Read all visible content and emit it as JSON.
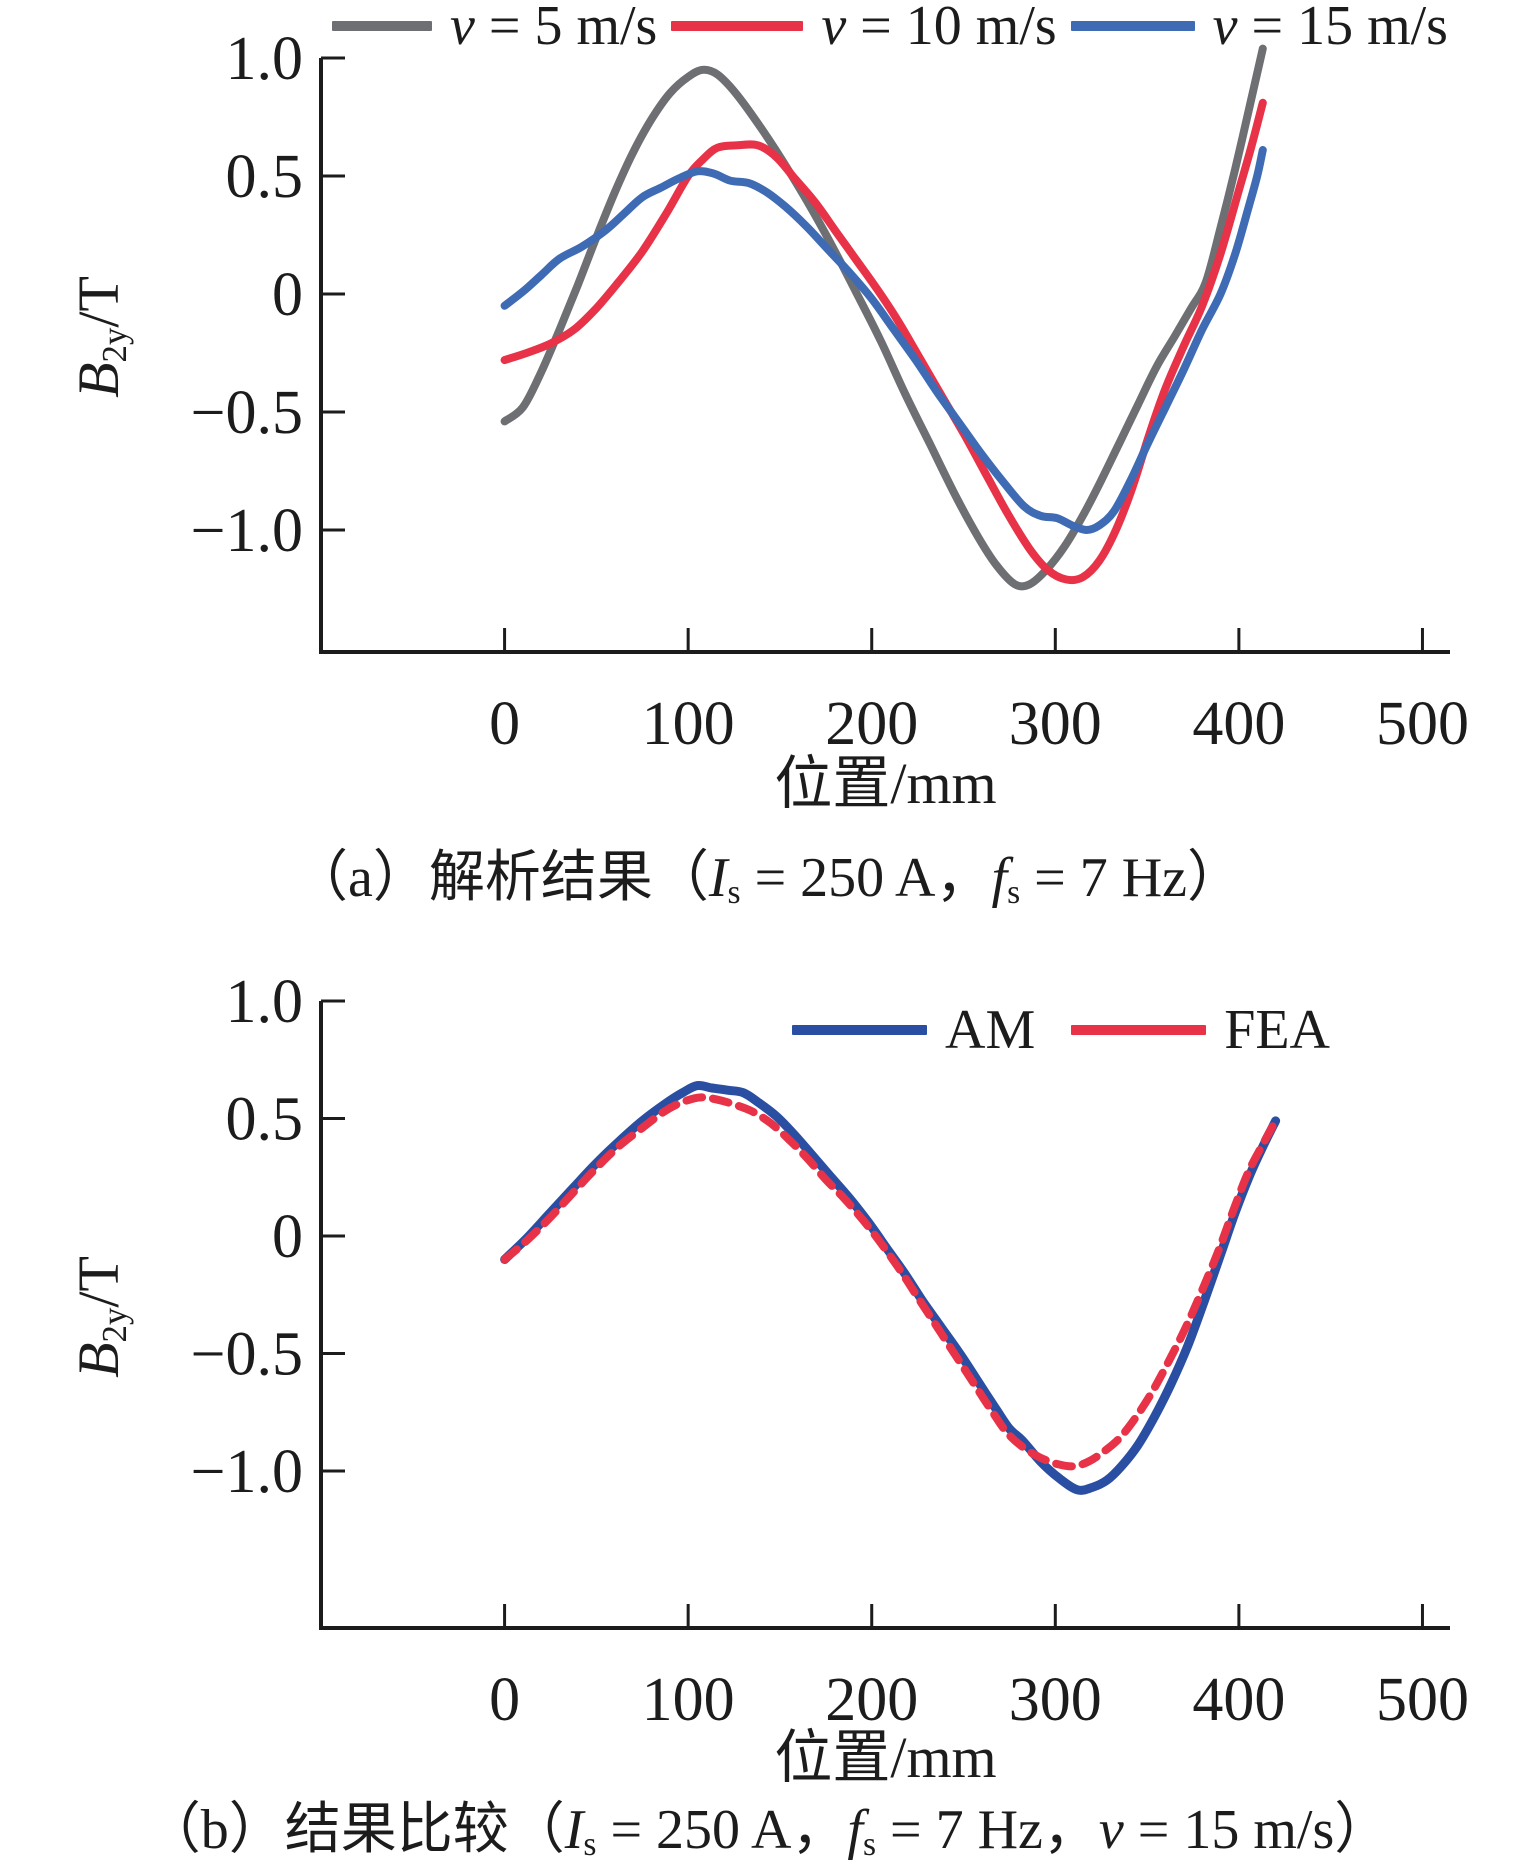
{
  "figure": {
    "background": "#ffffff",
    "text_color": "#1c1c1c",
    "axis_color": "#1c1c1c"
  },
  "chart_data": [
    {
      "type": "line",
      "panel": "a",
      "xlabel": "位置/mm",
      "ylabel_runs": [
        {
          "t": "B",
          "s": "i"
        },
        {
          "t": "2y",
          "s": "sub"
        },
        {
          "t": "/T"
        }
      ],
      "caption_runs": [
        {
          "t": "（a）解析结果（"
        },
        {
          "t": "I",
          "s": "i"
        },
        {
          "t": "s",
          "s": "sub"
        },
        {
          "t": " = 250 A，"
        },
        {
          "t": "f",
          "s": "i"
        },
        {
          "t": "s",
          "s": "sub"
        },
        {
          "t": " = 7 Hz）"
        }
      ],
      "xlim": [
        -100,
        515
      ],
      "ylim": [
        -1.517,
        1.0
      ],
      "grid": false,
      "legend_position": "top",
      "xticks": [
        {
          "v": 0,
          "label": "0"
        },
        {
          "v": 100,
          "label": "100"
        },
        {
          "v": 200,
          "label": "200"
        },
        {
          "v": 300,
          "label": "300"
        },
        {
          "v": 400,
          "label": "400"
        },
        {
          "v": 500,
          "label": "500"
        }
      ],
      "yticks": [
        {
          "v": 1.0,
          "label": "1.0"
        },
        {
          "v": 0.5,
          "label": "0.5"
        },
        {
          "v": 0,
          "label": "0"
        },
        {
          "v": -0.5,
          "label": "−0.5"
        },
        {
          "v": -1.0,
          "label": "−1.0"
        }
      ],
      "legend": [
        {
          "runs": [
            {
              "t": "v",
              "s": "i"
            },
            {
              "t": " = 5 m/s"
            }
          ],
          "color": "#6e6f72",
          "dash": false
        },
        {
          "runs": [
            {
              "t": "v",
              "s": "i"
            },
            {
              "t": " = 10 m/s"
            }
          ],
          "color": "#e73248",
          "dash": false
        },
        {
          "runs": [
            {
              "t": "v",
              "s": "i"
            },
            {
              "t": " = 15 m/s"
            }
          ],
          "color": "#3e6bb4",
          "dash": false
        }
      ],
      "series": [
        {
          "name": "v = 5 m/s",
          "color": "#6e6f72",
          "width": 8,
          "dash": null,
          "points": [
            [
              0,
              -0.54
            ],
            [
              10,
              -0.48
            ],
            [
              20,
              -0.33
            ],
            [
              30,
              -0.15
            ],
            [
              40,
              0.04
            ],
            [
              50,
              0.24
            ],
            [
              60,
              0.43
            ],
            [
              70,
              0.6
            ],
            [
              80,
              0.74
            ],
            [
              90,
              0.85
            ],
            [
              100,
              0.92
            ],
            [
              108,
              0.95
            ],
            [
              116,
              0.93
            ],
            [
              126,
              0.85
            ],
            [
              140,
              0.7
            ],
            [
              155,
              0.52
            ],
            [
              168,
              0.35
            ],
            [
              180,
              0.18
            ],
            [
              192,
              0.0
            ],
            [
              205,
              -0.2
            ],
            [
              218,
              -0.42
            ],
            [
              232,
              -0.64
            ],
            [
              246,
              -0.86
            ],
            [
              258,
              -1.03
            ],
            [
              268,
              -1.15
            ],
            [
              278,
              -1.23
            ],
            [
              286,
              -1.23
            ],
            [
              295,
              -1.17
            ],
            [
              305,
              -1.07
            ],
            [
              315,
              -0.94
            ],
            [
              325,
              -0.79
            ],
            [
              335,
              -0.63
            ],
            [
              345,
              -0.47
            ],
            [
              355,
              -0.31
            ],
            [
              365,
              -0.18
            ],
            [
              374,
              -0.06
            ],
            [
              382,
              0.05
            ],
            [
              390,
              0.28
            ],
            [
              398,
              0.53
            ],
            [
              406,
              0.8
            ],
            [
              413,
              1.04
            ]
          ]
        },
        {
          "name": "v = 10 m/s",
          "color": "#e73248",
          "width": 8,
          "dash": null,
          "points": [
            [
              0,
              -0.28
            ],
            [
              12,
              -0.25
            ],
            [
              25,
              -0.21
            ],
            [
              38,
              -0.15
            ],
            [
              50,
              -0.06
            ],
            [
              62,
              0.05
            ],
            [
              75,
              0.18
            ],
            [
              88,
              0.34
            ],
            [
              100,
              0.5
            ],
            [
              108,
              0.57
            ],
            [
              116,
              0.62
            ],
            [
              127,
              0.63
            ],
            [
              138,
              0.63
            ],
            [
              148,
              0.58
            ],
            [
              158,
              0.49
            ],
            [
              169,
              0.39
            ],
            [
              180,
              0.27
            ],
            [
              192,
              0.14
            ],
            [
              203,
              0.02
            ],
            [
              214,
              -0.11
            ],
            [
              226,
              -0.27
            ],
            [
              238,
              -0.43
            ],
            [
              250,
              -0.59
            ],
            [
              262,
              -0.76
            ],
            [
              274,
              -0.93
            ],
            [
              286,
              -1.08
            ],
            [
              296,
              -1.17
            ],
            [
              306,
              -1.21
            ],
            [
              315,
              -1.2
            ],
            [
              324,
              -1.13
            ],
            [
              333,
              -1.0
            ],
            [
              342,
              -0.82
            ],
            [
              351,
              -0.6
            ],
            [
              360,
              -0.4
            ],
            [
              370,
              -0.22
            ],
            [
              380,
              -0.05
            ],
            [
              390,
              0.17
            ],
            [
              400,
              0.44
            ],
            [
              407,
              0.63
            ],
            [
              413,
              0.81
            ]
          ]
        },
        {
          "name": "v = 15 m/s",
          "color": "#3e6bb4",
          "width": 8,
          "dash": null,
          "points": [
            [
              0,
              -0.05
            ],
            [
              10,
              0.01
            ],
            [
              20,
              0.08
            ],
            [
              30,
              0.15
            ],
            [
              42,
              0.2
            ],
            [
              55,
              0.27
            ],
            [
              65,
              0.34
            ],
            [
              75,
              0.41
            ],
            [
              85,
              0.45
            ],
            [
              95,
              0.49
            ],
            [
              105,
              0.52
            ],
            [
              114,
              0.51
            ],
            [
              123,
              0.48
            ],
            [
              133,
              0.47
            ],
            [
              143,
              0.43
            ],
            [
              153,
              0.37
            ],
            [
              164,
              0.29
            ],
            [
              176,
              0.19
            ],
            [
              188,
              0.09
            ],
            [
              200,
              -0.02
            ],
            [
              212,
              -0.15
            ],
            [
              224,
              -0.28
            ],
            [
              236,
              -0.42
            ],
            [
              248,
              -0.55
            ],
            [
              260,
              -0.68
            ],
            [
              272,
              -0.8
            ],
            [
              283,
              -0.9
            ],
            [
              292,
              -0.94
            ],
            [
              301,
              -0.95
            ],
            [
              309,
              -0.98
            ],
            [
              317,
              -1.0
            ],
            [
              324,
              -0.98
            ],
            [
              332,
              -0.92
            ],
            [
              341,
              -0.79
            ],
            [
              350,
              -0.64
            ],
            [
              360,
              -0.48
            ],
            [
              370,
              -0.32
            ],
            [
              380,
              -0.15
            ],
            [
              390,
              0.0
            ],
            [
              398,
              0.17
            ],
            [
              405,
              0.36
            ],
            [
              410,
              0.5
            ],
            [
              413,
              0.61
            ]
          ]
        }
      ]
    },
    {
      "type": "line",
      "panel": "b",
      "xlabel": "位置/mm",
      "ylabel_runs": [
        {
          "t": "B",
          "s": "i"
        },
        {
          "t": "2y",
          "s": "sub"
        },
        {
          "t": "/T"
        }
      ],
      "caption_runs": [
        {
          "t": "（b）结果比较（"
        },
        {
          "t": "I",
          "s": "i"
        },
        {
          "t": "s",
          "s": "sub"
        },
        {
          "t": " = 250 A，"
        },
        {
          "t": "f",
          "s": "i"
        },
        {
          "t": "s",
          "s": "sub"
        },
        {
          "t": " = 7 Hz，"
        },
        {
          "t": "v",
          "s": "i"
        },
        {
          "t": " = 15 m/s）"
        }
      ],
      "xlim": [
        -100,
        515
      ],
      "ylim": [
        -1.668,
        1.0
      ],
      "grid": false,
      "legend_position": "top-right-inside",
      "xticks": [
        {
          "v": 0,
          "label": "0"
        },
        {
          "v": 100,
          "label": "100"
        },
        {
          "v": 200,
          "label": "200"
        },
        {
          "v": 300,
          "label": "300"
        },
        {
          "v": 400,
          "label": "400"
        },
        {
          "v": 500,
          "label": "500"
        }
      ],
      "yticks": [
        {
          "v": 1.0,
          "label": "1.0"
        },
        {
          "v": 0.5,
          "label": "0.5"
        },
        {
          "v": 0,
          "label": "0"
        },
        {
          "v": -0.5,
          "label": "−0.5"
        },
        {
          "v": -1.0,
          "label": "−1.0"
        }
      ],
      "legend": [
        {
          "runs": [
            {
              "t": "AM"
            }
          ],
          "color": "#2a4fa2",
          "dash": false
        },
        {
          "runs": [
            {
              "t": "FEA"
            }
          ],
          "color": "#e73248",
          "dash": false
        }
      ],
      "series": [
        {
          "name": "AM",
          "color": "#2a4fa2",
          "width": 9,
          "dash": null,
          "points": [
            [
              0,
              -0.1
            ],
            [
              12,
              -0.01
            ],
            [
              25,
              0.1
            ],
            [
              38,
              0.21
            ],
            [
              50,
              0.31
            ],
            [
              62,
              0.4
            ],
            [
              75,
              0.49
            ],
            [
              87,
              0.56
            ],
            [
              97,
              0.61
            ],
            [
              105,
              0.64
            ],
            [
              113,
              0.63
            ],
            [
              122,
              0.62
            ],
            [
              130,
              0.61
            ],
            [
              138,
              0.57
            ],
            [
              148,
              0.51
            ],
            [
              158,
              0.43
            ],
            [
              168,
              0.34
            ],
            [
              178,
              0.25
            ],
            [
              188,
              0.16
            ],
            [
              198,
              0.06
            ],
            [
              208,
              -0.05
            ],
            [
              218,
              -0.16
            ],
            [
              228,
              -0.28
            ],
            [
              238,
              -0.39
            ],
            [
              248,
              -0.5
            ],
            [
              258,
              -0.62
            ],
            [
              268,
              -0.74
            ],
            [
              275,
              -0.82
            ],
            [
              282,
              -0.87
            ],
            [
              292,
              -0.96
            ],
            [
              302,
              -1.03
            ],
            [
              312,
              -1.08
            ],
            [
              320,
              -1.07
            ],
            [
              328,
              -1.04
            ],
            [
              336,
              -0.98
            ],
            [
              345,
              -0.89
            ],
            [
              354,
              -0.77
            ],
            [
              363,
              -0.63
            ],
            [
              372,
              -0.47
            ],
            [
              381,
              -0.28
            ],
            [
              390,
              -0.08
            ],
            [
              398,
              0.1
            ],
            [
              406,
              0.26
            ],
            [
              413,
              0.38
            ],
            [
              420,
              0.49
            ]
          ]
        },
        {
          "name": "FEA",
          "color": "#e73248",
          "width": 8,
          "dash": "16 11",
          "points": [
            [
              0,
              -0.1
            ],
            [
              12,
              -0.02
            ],
            [
              25,
              0.08
            ],
            [
              38,
              0.19
            ],
            [
              50,
              0.29
            ],
            [
              62,
              0.38
            ],
            [
              75,
              0.46
            ],
            [
              87,
              0.53
            ],
            [
              97,
              0.57
            ],
            [
              107,
              0.59
            ],
            [
              116,
              0.58
            ],
            [
              125,
              0.56
            ],
            [
              135,
              0.53
            ],
            [
              145,
              0.48
            ],
            [
              155,
              0.41
            ],
            [
              165,
              0.33
            ],
            [
              175,
              0.24
            ],
            [
              185,
              0.16
            ],
            [
              195,
              0.07
            ],
            [
              205,
              -0.03
            ],
            [
              215,
              -0.14
            ],
            [
              225,
              -0.26
            ],
            [
              235,
              -0.38
            ],
            [
              245,
              -0.5
            ],
            [
              255,
              -0.62
            ],
            [
              265,
              -0.74
            ],
            [
              273,
              -0.83
            ],
            [
              281,
              -0.89
            ],
            [
              291,
              -0.94
            ],
            [
              301,
              -0.97
            ],
            [
              310,
              -0.98
            ],
            [
              318,
              -0.96
            ],
            [
              326,
              -0.92
            ],
            [
              335,
              -0.86
            ],
            [
              344,
              -0.77
            ],
            [
              353,
              -0.66
            ],
            [
              362,
              -0.53
            ],
            [
              371,
              -0.39
            ],
            [
              380,
              -0.23
            ],
            [
              389,
              -0.06
            ],
            [
              397,
              0.11
            ],
            [
              405,
              0.27
            ],
            [
              413,
              0.39
            ],
            [
              420,
              0.49
            ]
          ]
        }
      ]
    }
  ]
}
